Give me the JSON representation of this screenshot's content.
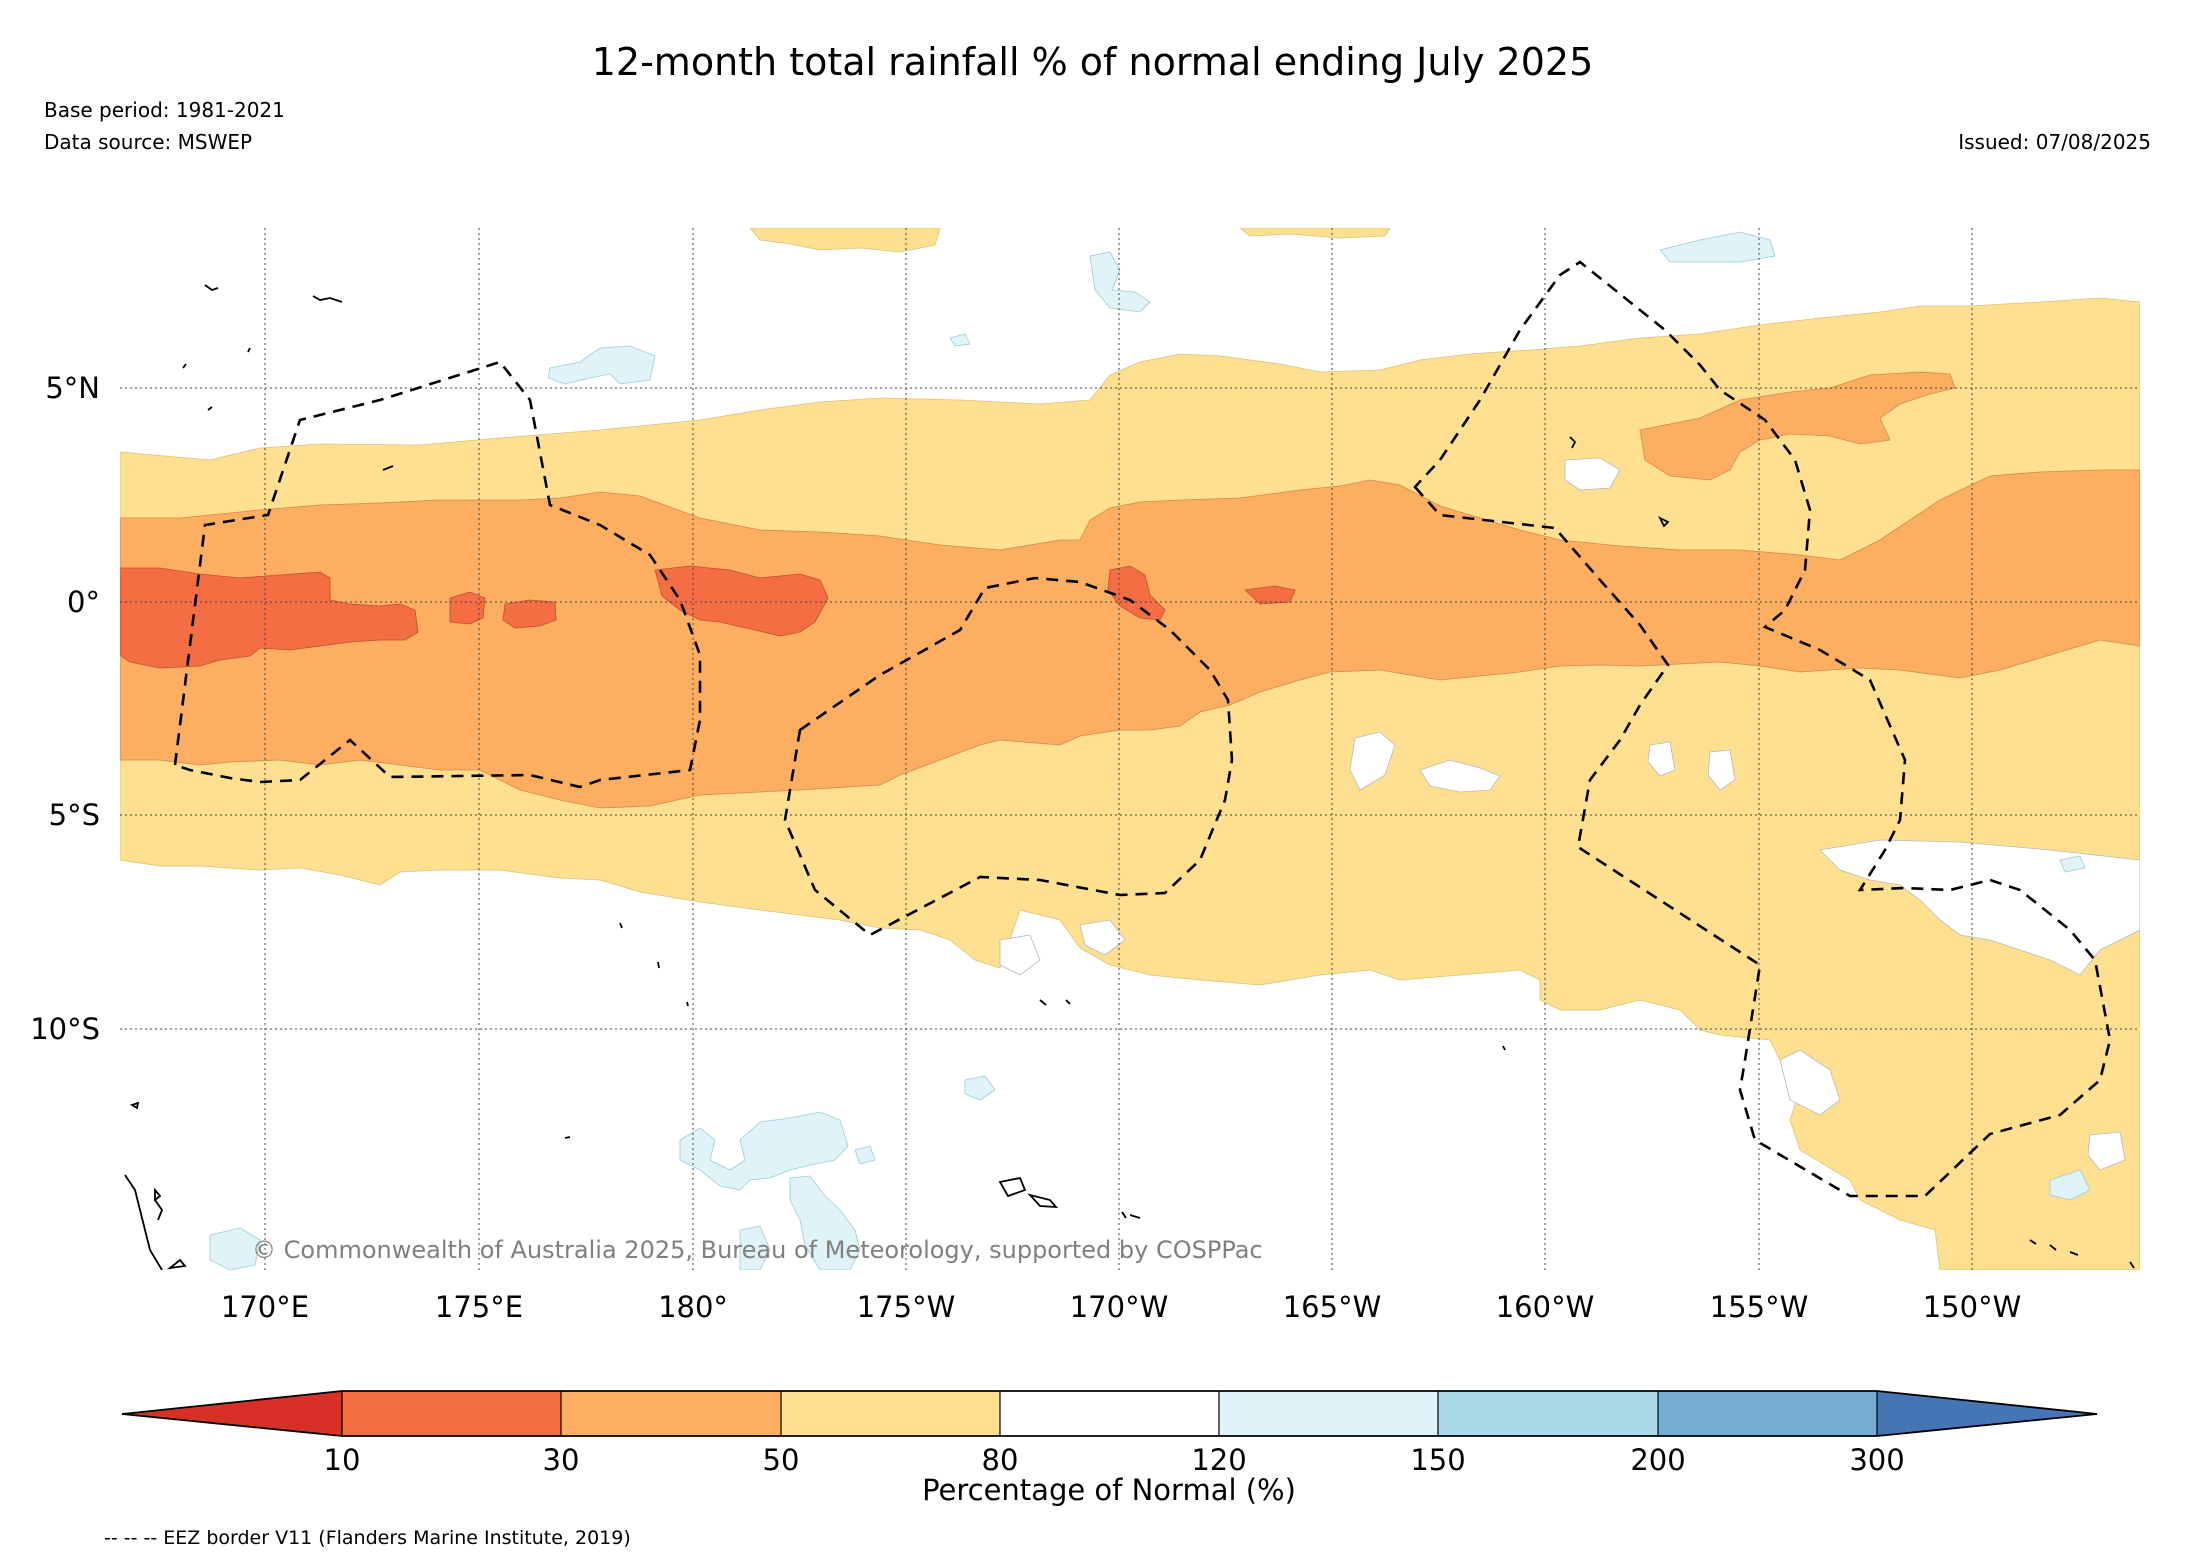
{
  "header": {
    "title": "12-month total rainfall % of normal ending July 2025",
    "base_period": "Base period: 1981-2021",
    "data_source": "Data source: MSWEP",
    "issued": "Issued: 07/08/2025"
  },
  "map": {
    "longitude_ticks": [
      "170°E",
      "175°E",
      "180°",
      "175°W",
      "170°W",
      "165°W",
      "160°W",
      "155°W",
      "150°W"
    ],
    "latitude_ticks": [
      "5°N",
      "0°",
      "5°S",
      "10°S"
    ],
    "copyright": "© Commonwealth of Australia 2025, Bureau of Meteorology, supported by COSPPac"
  },
  "colorbar": {
    "title": "Percentage of Normal (%)",
    "ticks": [
      "10",
      "30",
      "50",
      "80",
      "120",
      "150",
      "200",
      "300"
    ],
    "colors": [
      "#d73027",
      "#f46d43",
      "#fdae61",
      "#fee090",
      "#ffffff",
      "#e0f3f8",
      "#abd9e9",
      "#74add1",
      "#4575b4"
    ]
  },
  "legend": {
    "eez_note": "-- -- -- EEZ border V11 (Flanders Marine Institute, 2019)"
  }
}
